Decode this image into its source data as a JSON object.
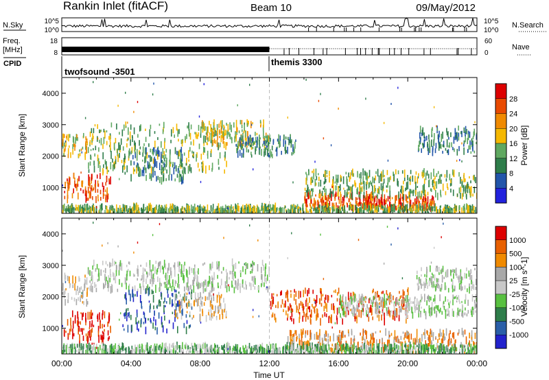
{
  "header": {
    "station": "Rankin Inlet (fitACF)",
    "beam": "Beam 10",
    "date": "09/May/2012"
  },
  "colors": {
    "power_scale": [
      "#2222dd",
      "#2255aa",
      "#2e7d4a",
      "#5fa860",
      "#f5b800",
      "#f08a00",
      "#e84a00",
      "#dd0000"
    ],
    "velocity_scale": [
      "#2222cc",
      "#2a5fa8",
      "#2e7d4a",
      "#58c040",
      "#c8c8c8",
      "#a8a8a8",
      "#f08a00",
      "#e86000",
      "#dd0000"
    ]
  },
  "chart_data": [
    {
      "type": "line",
      "title": "",
      "left_label": "N.Sky",
      "right_label": "N.Search",
      "ylabel_left_ticks": [
        "10^5",
        "10^0"
      ],
      "ylabel_right_ticks": [
        "10^5",
        "10^0"
      ],
      "x": [
        "00:00",
        "04:00",
        "08:00",
        "12:00",
        "16:00",
        "20:00",
        "00:00"
      ],
      "note": ""
    },
    {
      "type": "line",
      "left_label_top": "Freq.",
      "left_label_unit": "[MHz]",
      "left_ticks": [
        "18",
        "8"
      ],
      "right_label": "Nave",
      "right_ticks": [
        "60",
        "0"
      ]
    },
    {
      "type": "table",
      "label": "CPID",
      "segments": [
        {
          "name": "twofsound -3501",
          "start": "00:00",
          "end": "12:00"
        },
        {
          "name": "themis 3300",
          "start": "12:00",
          "end": "24:00"
        }
      ]
    },
    {
      "type": "heatmap",
      "ylabel": "Slant Range [km]",
      "ylim": [
        180,
        4500
      ],
      "y_ticks": [
        1000,
        2000,
        3000,
        4000
      ],
      "colorbar_label": "Power [dB]",
      "colorbar_ticks": [
        "4",
        "8",
        "12",
        "16",
        "20",
        "24",
        "28"
      ],
      "echo_regions": [
        {
          "t0": 0.1,
          "t1": 2.8,
          "r0": 600,
          "r1": 1400,
          "level": 6
        },
        {
          "t0": 0.0,
          "t1": 1.5,
          "r0": 2000,
          "r1": 2700,
          "level": 4
        },
        {
          "t0": 1.5,
          "t1": 9.5,
          "r0": 1500,
          "r1": 3000,
          "level": 3
        },
        {
          "t0": 3.5,
          "t1": 7.0,
          "r0": 1200,
          "r1": 2200,
          "level": 2
        },
        {
          "t0": 8.0,
          "t1": 12.0,
          "r0": 2300,
          "r1": 3100,
          "level": 4
        },
        {
          "t0": 10.0,
          "t1": 13.5,
          "r0": 2000,
          "r1": 2600,
          "level": 2
        },
        {
          "t0": 14.0,
          "t1": 18.5,
          "r0": 350,
          "r1": 800,
          "level": 6
        },
        {
          "t0": 17.5,
          "t1": 21.5,
          "r0": 300,
          "r1": 700,
          "level": 6
        },
        {
          "t0": 14.0,
          "t1": 24.0,
          "r0": 700,
          "r1": 1500,
          "level": 3
        },
        {
          "t0": 20.5,
          "t1": 24.0,
          "r0": 2100,
          "r1": 2900,
          "level": 2
        },
        {
          "t0": 0.0,
          "t1": 24.0,
          "r0": 180,
          "r1": 400,
          "level": 3
        }
      ]
    },
    {
      "type": "heatmap",
      "ylabel": "Slant Range [km]",
      "ylim": [
        180,
        4500
      ],
      "y_ticks": [
        1000,
        2000,
        3000,
        4000
      ],
      "colorbar_label": "Velocity [m s^-1]",
      "colorbar_ticks": [
        "1000",
        "500",
        "100",
        "25",
        "-25",
        "-100",
        "-500",
        "-1000"
      ],
      "xlabel": "Time UT",
      "echo_regions": [
        {
          "t0": 0.1,
          "t1": 2.8,
          "r0": 500,
          "r1": 1500,
          "level": 8
        },
        {
          "t0": 0.0,
          "t1": 1.5,
          "r0": 1800,
          "r1": 2700,
          "level": 5
        },
        {
          "t0": 1.5,
          "t1": 12.0,
          "r0": 2200,
          "r1": 3100,
          "level": 4
        },
        {
          "t0": 3.5,
          "t1": 7.5,
          "r0": 900,
          "r1": 2200,
          "level": 1
        },
        {
          "t0": 6.5,
          "t1": 9.5,
          "r0": 1300,
          "r1": 2100,
          "level": 5
        },
        {
          "t0": 13.0,
          "t1": 24.0,
          "r0": 200,
          "r1": 900,
          "level": 6
        },
        {
          "t0": 12.0,
          "t1": 20.0,
          "r0": 1200,
          "r1": 2200,
          "level": 7
        },
        {
          "t0": 16.0,
          "t1": 24.0,
          "r0": 1400,
          "r1": 2000,
          "level": 4
        },
        {
          "t0": 20.5,
          "t1": 24.0,
          "r0": 2200,
          "r1": 2900,
          "level": 4
        },
        {
          "t0": 0.0,
          "t1": 24.0,
          "r0": 180,
          "r1": 450,
          "level": 3
        }
      ]
    }
  ]
}
